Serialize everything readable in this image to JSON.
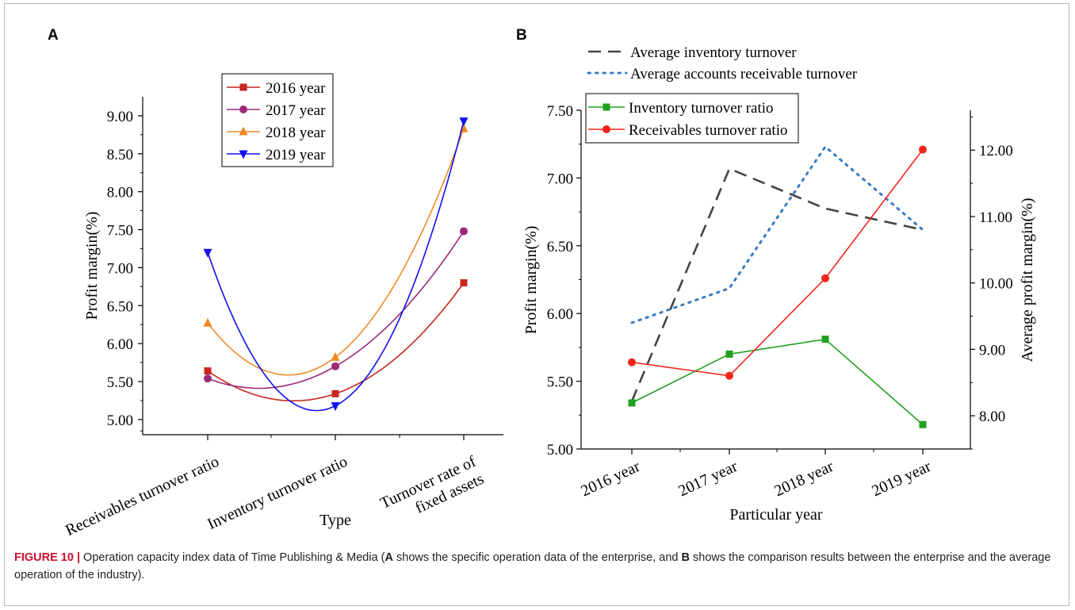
{
  "caption": {
    "label": "FIGURE 10 |",
    "text_1": " Operation capacity index data of Time Publishing & Media (",
    "bold_a": "A",
    "text_2": " shows the specific operation data of the enterprise, and ",
    "bold_b": "B",
    "text_3": " shows the comparison results between the enterprise and the average operation of the industry)."
  },
  "colors": {
    "red_2016": "#c8261e",
    "purple_2017": "#9b2a7a",
    "orange_2018": "#f08a24",
    "blue_2019": "#1010f0",
    "green": "#22a020",
    "red": "#f0251c",
    "dash_gray": "#444444",
    "dot_blue": "#3a7bbf"
  },
  "chart_data": [
    {
      "panel": "A",
      "type": "line",
      "smooth": true,
      "categories": [
        "Receivables turnover ratio",
        "Inventory turnover ratio",
        "Turnover rate of\nfixed assets"
      ],
      "xlabel": "Type",
      "ylabel": "Profit margin(%)",
      "ylim": [
        4.8,
        9.25
      ],
      "yticks": [
        "5.00",
        "5.50",
        "6.00",
        "6.50",
        "7.00",
        "7.50",
        "8.00",
        "8.50",
        "9.00"
      ],
      "legend_position": "top-center",
      "series": [
        {
          "name": "2016 year",
          "marker": "square",
          "color": "#c8261e",
          "values": [
            5.64,
            5.34,
            6.8
          ]
        },
        {
          "name": "2017 year",
          "marker": "circle",
          "color": "#9b2a7a",
          "values": [
            5.54,
            5.7,
            7.48
          ]
        },
        {
          "name": "2018 year",
          "marker": "triangle-up",
          "color": "#f08a24",
          "values": [
            6.27,
            5.82,
            8.83
          ]
        },
        {
          "name": "2019 year",
          "marker": "triangle-down",
          "color": "#1010f0",
          "values": [
            7.2,
            5.18,
            8.93
          ]
        }
      ]
    },
    {
      "panel": "B",
      "type": "line",
      "categories": [
        "2016 year",
        "2017 year",
        "2018 year",
        "2019 year"
      ],
      "xlabel": "Particular year",
      "ylabel": "Profit margin(%)",
      "ylabel_right": "Average profit margin(%)",
      "ylim": [
        5.0,
        7.5
      ],
      "yticks": [
        "5.00",
        "5.50",
        "6.00",
        "6.50",
        "7.00",
        "7.50"
      ],
      "ylim_right": [
        7.5,
        12.6
      ],
      "yticks_right": [
        "8.00",
        "9.00",
        "10.00",
        "11.00",
        "12.00"
      ],
      "legend_position": "top-left",
      "series": [
        {
          "name": "Average inventory turnover",
          "axis": "right",
          "style": "dashed",
          "color": "#444444",
          "values": [
            8.22,
            11.72,
            11.12,
            10.8
          ]
        },
        {
          "name": "Average accounts receivable turnover",
          "axis": "right",
          "style": "dotted",
          "color": "#3a7bbf",
          "values": [
            9.4,
            9.92,
            12.05,
            10.8
          ]
        },
        {
          "name": "Inventory turnover ratio",
          "axis": "left",
          "marker": "square",
          "color": "#22a020",
          "values": [
            5.34,
            5.7,
            5.81,
            5.18
          ]
        },
        {
          "name": "Receivables turnover ratio",
          "axis": "left",
          "marker": "circle",
          "color": "#f0251c",
          "values": [
            5.64,
            5.54,
            6.26,
            7.21
          ]
        }
      ]
    }
  ]
}
